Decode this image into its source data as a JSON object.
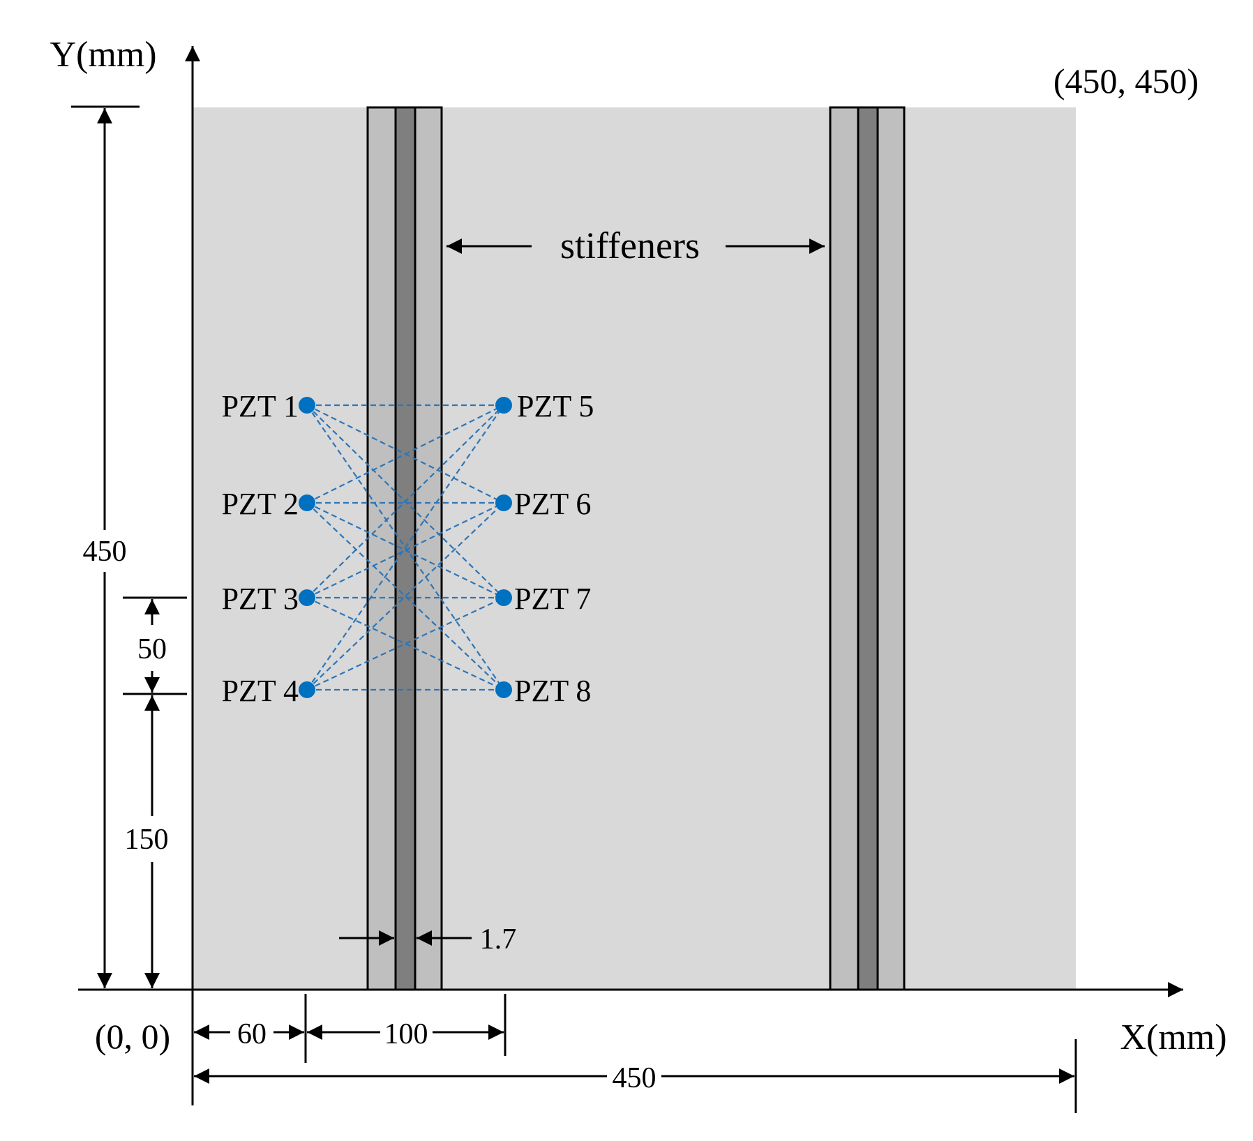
{
  "axes": {
    "x_label": "X(mm)",
    "y_label": "Y(mm)"
  },
  "corners": {
    "origin": "(0, 0)",
    "top_right": "(450, 450)"
  },
  "callout": {
    "label": "stiffeners"
  },
  "dimensions": {
    "height_total": "450",
    "sensor_spacing_y": "50",
    "sensor_offset_y": "150",
    "stiffener_web": "1.7",
    "sensor_offset_x": "60",
    "sensor_spacing_x": "100",
    "width_total": "450"
  },
  "sensors": [
    {
      "label": "PZT 1"
    },
    {
      "label": "PZT 2"
    },
    {
      "label": "PZT 3"
    },
    {
      "label": "PZT 4"
    },
    {
      "label": "PZT 5"
    },
    {
      "label": "PZT 6"
    },
    {
      "label": "PZT 7"
    },
    {
      "label": "PZT 8"
    }
  ],
  "colors": {
    "plate": "#d9d9d9",
    "flange": "#bfbfbf",
    "web": "#7f7f7f",
    "sensor": "#0070c0",
    "path": "#2e75b6"
  }
}
